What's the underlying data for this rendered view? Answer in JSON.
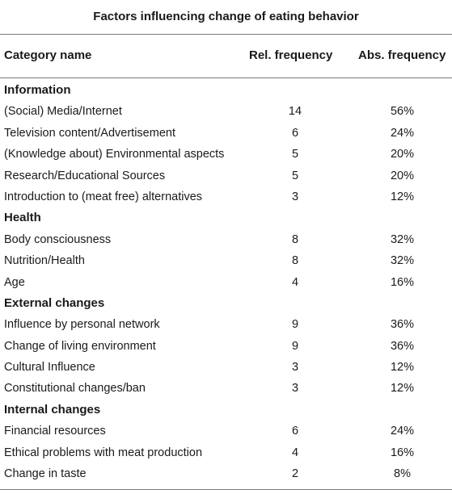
{
  "table": {
    "title": "Factors influencing change of eating behavior",
    "headers": {
      "category": "Category name",
      "rel": "Rel. frequency",
      "abs": "Abs. frequency"
    },
    "sections": [
      {
        "name": "Information",
        "rows": [
          {
            "name": "(Social) Media/Internet",
            "rel": "14",
            "abs": "56%"
          },
          {
            "name": "Television content/Advertisement",
            "rel": "6",
            "abs": "24%"
          },
          {
            "name": "(Knowledge about) Environmental aspects",
            "rel": "5",
            "abs": "20%"
          },
          {
            "name": "Research/Educational Sources",
            "rel": "5",
            "abs": "20%"
          },
          {
            "name": "Introduction to (meat free) alternatives",
            "rel": "3",
            "abs": "12%"
          }
        ]
      },
      {
        "name": "Health",
        "rows": [
          {
            "name": "Body consciousness",
            "rel": "8",
            "abs": "32%"
          },
          {
            "name": "Nutrition/Health",
            "rel": "8",
            "abs": "32%"
          },
          {
            "name": "Age",
            "rel": "4",
            "abs": "16%"
          }
        ]
      },
      {
        "name": "External changes",
        "rows": [
          {
            "name": "Influence by personal network",
            "rel": "9",
            "abs": "36%"
          },
          {
            "name": "Change of living environment",
            "rel": "9",
            "abs": "36%"
          },
          {
            "name": "Cultural Influence",
            "rel": "3",
            "abs": "12%"
          },
          {
            "name": "Constitutional changes/ban",
            "rel": "3",
            "abs": "12%"
          }
        ]
      },
      {
        "name": "Internal changes",
        "rows": [
          {
            "name": "Financial resources",
            "rel": "6",
            "abs": "24%"
          },
          {
            "name": "Ethical problems with meat production",
            "rel": "4",
            "abs": "16%"
          },
          {
            "name": "Change in taste",
            "rel": "2",
            "abs": "8%"
          }
        ]
      }
    ]
  }
}
